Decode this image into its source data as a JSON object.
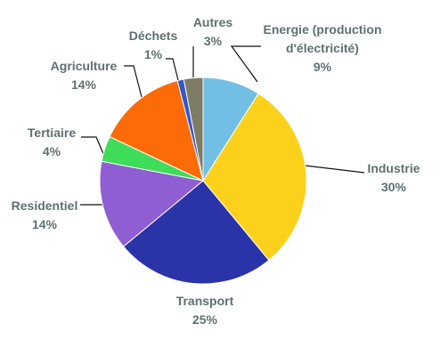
{
  "chart_data": {
    "type": "pie",
    "colors": {
      "label_text": "#5f7070",
      "leader_lines": "#111111",
      "slice_border": "#ffffff"
    },
    "slices": [
      {
        "name_lines": [
          "Energie  (production",
          "d'électricité)"
        ],
        "value": 9,
        "value_label": "9%",
        "color": "#72bfe5"
      },
      {
        "name_lines": [
          "Industrie"
        ],
        "value": 30,
        "value_label": "30%",
        "color": "#fcd11b"
      },
      {
        "name_lines": [
          "Transport"
        ],
        "value": 25,
        "value_label": "25%",
        "color": "#2a33a8"
      },
      {
        "name_lines": [
          "Residentiel"
        ],
        "value": 14,
        "value_label": "14%",
        "color": "#8f5ed2"
      },
      {
        "name_lines": [
          "Tertiaire"
        ],
        "value": 4,
        "value_label": "4%",
        "color": "#3edc58"
      },
      {
        "name_lines": [
          "Agriculture"
        ],
        "value": 14,
        "value_label": "14%",
        "color": "#fb6b08"
      },
      {
        "name_lines": [
          "Déchets"
        ],
        "value": 1,
        "value_label": "1%",
        "color": "#3357cb"
      },
      {
        "name_lines": [
          "Autres"
        ],
        "value": 3,
        "value_label": "3%",
        "color": "#7f7c66"
      }
    ]
  }
}
